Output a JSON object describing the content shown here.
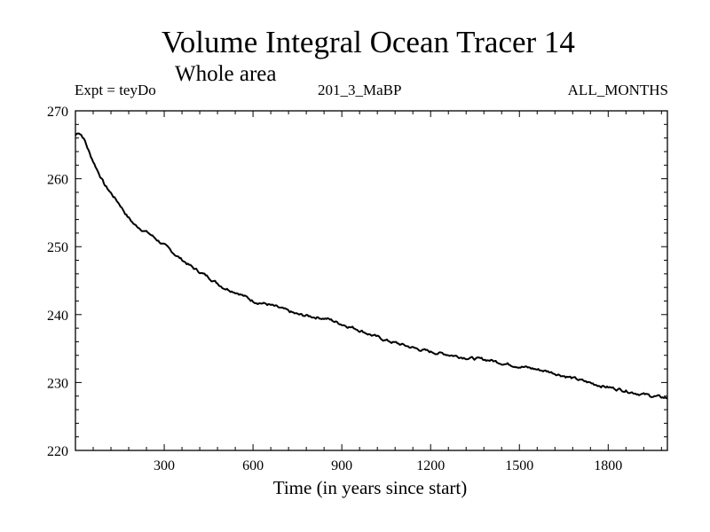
{
  "chart_data": {
    "type": "line",
    "title": "Volume Integral Ocean Tracer 14",
    "subtitle": "Whole area",
    "annotations": {
      "experiment": "Expt = teyDo",
      "run_id": "201_3_MaBP",
      "months": "ALL_MONTHS"
    },
    "xlabel": "Time (in years since start)",
    "ylabel": "",
    "xlim": [
      0,
      2000
    ],
    "ylim": [
      220,
      270
    ],
    "xticks": [
      300,
      600,
      900,
      1200,
      1500,
      1800
    ],
    "yticks": [
      220,
      230,
      240,
      250,
      260,
      270
    ],
    "grid": false,
    "series": [
      {
        "name": "Tracer 14",
        "color": "#000000",
        "x": [
          0,
          10,
          20,
          30,
          50,
          75,
          100,
          125,
          150,
          175,
          200,
          250,
          300,
          350,
          400,
          450,
          500,
          550,
          600,
          650,
          700,
          750,
          800,
          850,
          900,
          950,
          1000,
          1050,
          1100,
          1150,
          1200,
          1250,
          1300,
          1350,
          1400,
          1450,
          1500,
          1550,
          1600,
          1650,
          1700,
          1750,
          1800,
          1850,
          1900,
          1950,
          2000
        ],
        "values": [
          266.4,
          266.9,
          266.5,
          265.8,
          263.5,
          261.2,
          259.0,
          257.6,
          256.2,
          254.5,
          253.2,
          251.9,
          250.2,
          248.4,
          246.8,
          245.5,
          244.0,
          243.2,
          242.0,
          241.5,
          240.8,
          240.0,
          239.7,
          239.4,
          238.6,
          237.9,
          237.0,
          236.2,
          235.6,
          235.0,
          234.5,
          234.2,
          233.8,
          233.5,
          233.3,
          232.8,
          232.4,
          232.0,
          231.6,
          231.0,
          230.4,
          229.8,
          229.3,
          228.9,
          228.4,
          228.0,
          227.7
        ]
      }
    ]
  }
}
